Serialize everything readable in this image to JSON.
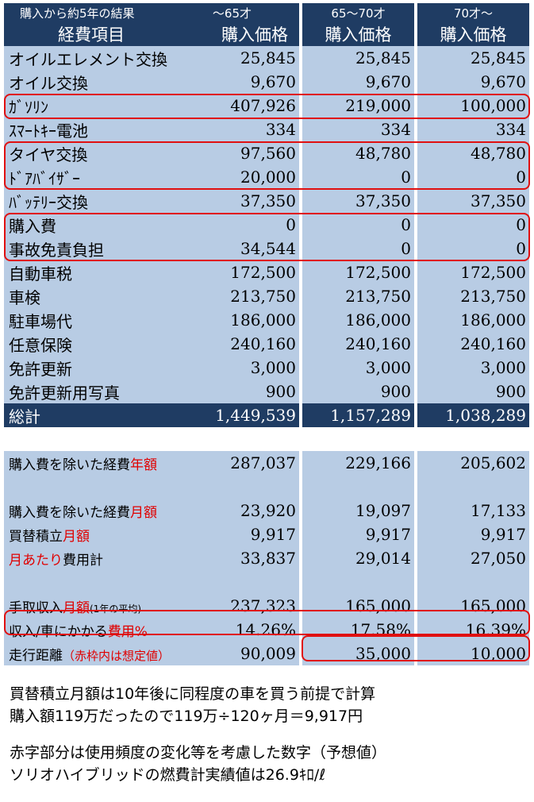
{
  "header": {
    "title": "購入から約5年の結果",
    "col1": "～65才",
    "col2": "65～70才",
    "col3": "70才～",
    "item_label": "経費項目",
    "price_label": "購入価格"
  },
  "rows": [
    {
      "label": "オイルエレメント交換",
      "v1": "25,845",
      "v2": "25,845",
      "v3": "25,845"
    },
    {
      "label": "オイル交換",
      "v1": "9,670",
      "v2": "9,670",
      "v3": "9,670"
    },
    {
      "label": "ｶﾞｿﾘﾝ",
      "v1": "407,926",
      "v2": "219,000",
      "v3": "100,000"
    },
    {
      "label": "ｽﾏｰﾄｷｰ電池",
      "v1": "334",
      "v2": "334",
      "v3": "334"
    },
    {
      "label": "タイヤ交換",
      "v1": "97,560",
      "v2": "48,780",
      "v3": "48,780"
    },
    {
      "label": "ﾄﾞｱﾊﾞｲｻﾞｰ",
      "v1": "20,000",
      "v2": "0",
      "v3": "0"
    },
    {
      "label": "ﾊﾞｯﾃﾘｰ交換",
      "v1": "37,350",
      "v2": "37,350",
      "v3": "37,350"
    },
    {
      "label": "購入費",
      "v1": "0",
      "v2": "0",
      "v3": "0"
    },
    {
      "label": "事故免責負担",
      "v1": "34,544",
      "v2": "0",
      "v3": "0"
    },
    {
      "label": "自動車税",
      "v1": "172,500",
      "v2": "172,500",
      "v3": "172,500"
    },
    {
      "label": "車検",
      "v1": "213,750",
      "v2": "213,750",
      "v3": "213,750"
    },
    {
      "label": "駐車場代",
      "v1": "186,000",
      "v2": "186,000",
      "v3": "186,000"
    },
    {
      "label": "任意保険",
      "v1": "240,160",
      "v2": "240,160",
      "v3": "240,160"
    },
    {
      "label": "免許更新",
      "v1": "3,000",
      "v2": "3,000",
      "v3": "3,000"
    },
    {
      "label": "免許更新用写真",
      "v1": "900",
      "v2": "900",
      "v3": "900"
    }
  ],
  "total": {
    "label": "総計",
    "v1": "1,449,539",
    "v2": "1,157,289",
    "v3": "1,038,289"
  },
  "annual": {
    "label_a": "購入費を除いた経費",
    "label_b": "年額",
    "v1": "287,037",
    "v2": "229,166",
    "v3": "205,602"
  },
  "monthly": {
    "label_a": "購入費を除いた経費",
    "label_b": "月額",
    "v1": "23,920",
    "v2": "19,097",
    "v3": "17,133"
  },
  "savings": {
    "label_a": "買替積立",
    "label_b": "月額",
    "v1": "9,917",
    "v2": "9,917",
    "v3": "9,917"
  },
  "per_month": {
    "label_a": "月あたり",
    "label_b": "費用計",
    "v1": "33,837",
    "v2": "29,014",
    "v3": "27,050"
  },
  "income": {
    "label_a": "手取収入",
    "label_b": "月額",
    "label_c": "(1年の平均)",
    "v1": "237,323",
    "v2": "165,000",
    "v3": "165,000"
  },
  "ratio": {
    "label_a": "収入/車にかかる",
    "label_b": "費用%",
    "v1": "14.26%",
    "v2": "17.58%",
    "v3": "16.39%"
  },
  "distance": {
    "label_a": "走行距離",
    "label_b": "（赤枠内は想定値）",
    "v1": "90,009",
    "v2": "35,000",
    "v3": "10,000"
  },
  "notes": [
    "買替積立月額は10年後に同程度の車を買う前提で計算",
    "購入額119万だったので119万÷120ヶ月＝9,917円",
    "赤字部分は使用頻度の変化等を考慮した数字（予想値）",
    "ソリオハイブリッドの燃費計実績値は26.9ｷﾛ/ℓ"
  ],
  "colors": {
    "header_navy": "#1f3c63",
    "cell_blue": "#b8cce4",
    "highlight_red": "#e00000"
  }
}
